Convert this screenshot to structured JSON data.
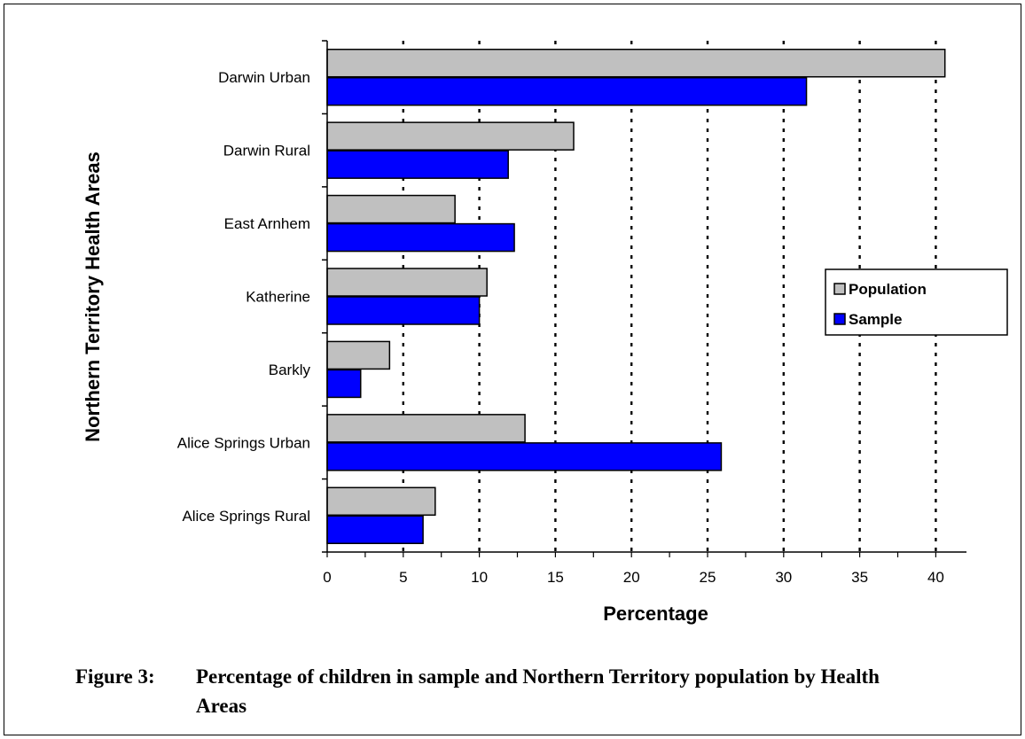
{
  "chart_data": {
    "type": "bar",
    "orientation": "horizontal",
    "categories": [
      "Darwin Urban",
      "Darwin Rural",
      "East Arnhem",
      "Katherine",
      "Barkly",
      "Alice Springs Urban",
      "Alice Springs Rural"
    ],
    "series": [
      {
        "name": "Population",
        "color": "#c0c0c0",
        "values": [
          40.6,
          16.2,
          8.4,
          10.5,
          4.1,
          13.0,
          7.1
        ]
      },
      {
        "name": "Sample",
        "color": "#0000ff",
        "values": [
          31.5,
          11.9,
          12.3,
          10.0,
          2.2,
          25.9,
          6.3
        ]
      }
    ],
    "xlabel": "Percentage",
    "ylabel": "Northern Territory Health Areas",
    "xlim": [
      0,
      42
    ],
    "xticks": [
      0,
      5,
      10,
      15,
      20,
      25,
      30,
      35,
      40
    ],
    "grid": "vertical dotted",
    "legend": "right"
  },
  "caption": {
    "label": "Figure 3:",
    "text": "Percentage of children in sample and Northern Territory population by Health Areas"
  }
}
